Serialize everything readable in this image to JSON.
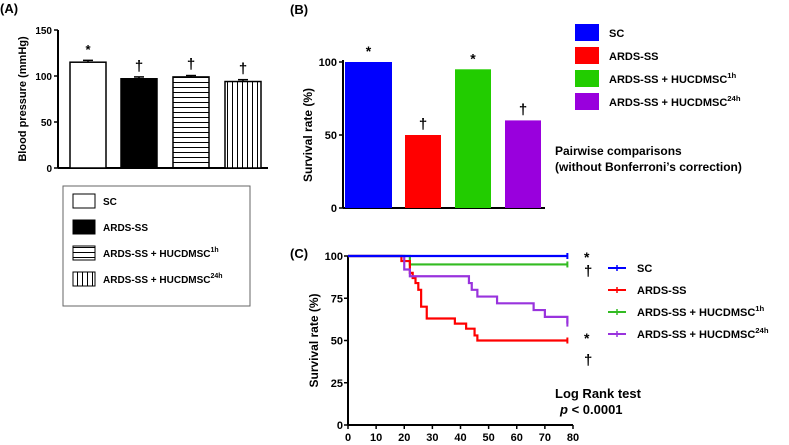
{
  "chart_data": [
    {
      "panel": "(A)",
      "type": "bar",
      "ylabel": "Blood pressure (mmHg)",
      "ylim": [
        0,
        150
      ],
      "yticks": [
        0,
        50,
        100,
        150
      ],
      "categories": [
        "SC",
        "ARDS-SS",
        "ARDS-SS + HUCDMSC1h",
        "ARDS-SS + HUCDMSC24h"
      ],
      "values": [
        115,
        97,
        99,
        94
      ],
      "errors": [
        2,
        2,
        1.5,
        2
      ],
      "annotations": [
        "*",
        "†",
        "†",
        "†"
      ],
      "patterns": [
        "white",
        "black",
        "horizontal",
        "vertical"
      ],
      "legend": [
        {
          "label": "SC",
          "sup": ""
        },
        {
          "label": "ARDS-SS",
          "sup": ""
        },
        {
          "label": "ARDS-SS + HUCDMSC",
          "sup": "1h"
        },
        {
          "label": "ARDS-SS + HUCDMSC",
          "sup": "24h"
        }
      ]
    },
    {
      "panel": "(B)",
      "type": "bar",
      "ylabel": "Survival rate (%)",
      "ylim": [
        0,
        100
      ],
      "yticks": [
        0,
        50,
        100
      ],
      "categories": [
        "SC",
        "ARDS-SS",
        "ARDS-SS + HUCDMSC1h",
        "ARDS-SS + HUCDMSC24h"
      ],
      "values": [
        100,
        50,
        95,
        60
      ],
      "annotations": [
        "*",
        "†",
        "*",
        "†"
      ],
      "colors": [
        "#0000ff",
        "#ff0000",
        "#22cc00",
        "#9900dd"
      ],
      "legend": [
        {
          "label": "SC",
          "sup": ""
        },
        {
          "label": "ARDS-SS",
          "sup": ""
        },
        {
          "label": "ARDS-SS + HUCDMSC",
          "sup": "1h"
        },
        {
          "label": "ARDS-SS + HUCDMSC",
          "sup": "24h"
        }
      ],
      "note": [
        "Pairwise comparisons",
        "(without Bonferroni’s correction)"
      ]
    },
    {
      "panel": "(C)",
      "type": "line",
      "ylabel": "Survival rate (%)",
      "ylim": [
        0,
        100
      ],
      "xlim": [
        0,
        80
      ],
      "yticks": [
        0,
        25,
        50,
        75,
        100
      ],
      "xticks": [
        0,
        10,
        20,
        30,
        40,
        50,
        60,
        70,
        80
      ],
      "series": [
        {
          "name": "SC",
          "sup": "",
          "color": "#0000ff",
          "end_mark": "*",
          "steps": [
            [
              0,
              100
            ],
            [
              78,
              100
            ]
          ]
        },
        {
          "name": "ARDS-SS",
          "sup": "",
          "color": "#ff0000",
          "end_mark": "†",
          "steps": [
            [
              0,
              100
            ],
            [
              19,
              97
            ],
            [
              22,
              90
            ],
            [
              23,
              87
            ],
            [
              24,
              84
            ],
            [
              25,
              80
            ],
            [
              26,
              70
            ],
            [
              28,
              63
            ],
            [
              38,
              60
            ],
            [
              42,
              57
            ],
            [
              45,
              53
            ],
            [
              46,
              50
            ],
            [
              78,
              50
            ]
          ]
        },
        {
          "name": "ARDS-SS + HUCDMSC",
          "sup": "1h",
          "color": "#33bb22",
          "end_mark": "*",
          "steps": [
            [
              0,
              100
            ],
            [
              22,
              95
            ],
            [
              78,
              95
            ]
          ]
        },
        {
          "name": "ARDS-SS + HUCDMSC",
          "sup": "24h",
          "color": "#9933dd",
          "end_mark": "†",
          "steps": [
            [
              0,
              100
            ],
            [
              20,
              92
            ],
            [
              22,
              88
            ],
            [
              43,
              84
            ],
            [
              44,
              80
            ],
            [
              46,
              76
            ],
            [
              53,
              72
            ],
            [
              66,
              68
            ],
            [
              70,
              64
            ],
            [
              78,
              60
            ]
          ]
        }
      ],
      "test": [
        "Log Rank test",
        "p",
        " < 0.0001"
      ]
    }
  ]
}
